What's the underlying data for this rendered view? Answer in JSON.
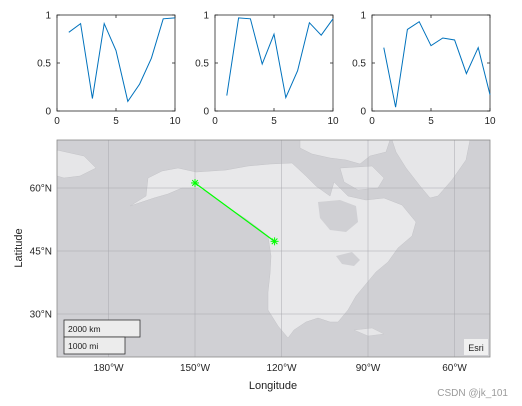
{
  "chart_data": [
    {
      "type": "line",
      "x": [
        1,
        2,
        3,
        4,
        5,
        6,
        7,
        8,
        9,
        10
      ],
      "series": [
        {
          "values": [
            0.82,
            0.91,
            0.13,
            0.91,
            0.63,
            0.1,
            0.28,
            0.55,
            0.96,
            0.97
          ]
        }
      ],
      "xlim": [
        0,
        10
      ],
      "ylim": [
        0,
        1
      ],
      "xticks": [
        "0",
        "5",
        "10"
      ],
      "yticks": [
        "0",
        "0.5",
        "1"
      ]
    },
    {
      "type": "line",
      "x": [
        1,
        2,
        3,
        4,
        5,
        6,
        7,
        8,
        9,
        10
      ],
      "series": [
        {
          "values": [
            0.16,
            0.97,
            0.96,
            0.49,
            0.8,
            0.14,
            0.42,
            0.92,
            0.79,
            0.96
          ]
        }
      ],
      "xlim": [
        0,
        10
      ],
      "ylim": [
        0,
        1
      ],
      "xticks": [
        "0",
        "5",
        "10"
      ],
      "yticks": [
        "0",
        "0.5",
        "1"
      ]
    },
    {
      "type": "line",
      "x": [
        1,
        2,
        3,
        4,
        5,
        6,
        7,
        8,
        9,
        10
      ],
      "series": [
        {
          "values": [
            0.66,
            0.04,
            0.85,
            0.93,
            0.68,
            0.76,
            0.74,
            0.39,
            0.66,
            0.17
          ]
        }
      ],
      "xlim": [
        0,
        10
      ],
      "ylim": [
        0,
        1
      ],
      "xticks": [
        "0",
        "5",
        "10"
      ],
      "yticks": [
        "0",
        "0.5",
        "1"
      ]
    },
    {
      "type": "map",
      "xlabel": "Longitude",
      "ylabel": "Latitude",
      "xticks": [
        "180°W",
        "150°W",
        "120°W",
        "90°W",
        "60°W"
      ],
      "yticks": [
        "30°N",
        "45°N",
        "60°N"
      ],
      "route": [
        {
          "lon": -150,
          "lat": 61.2
        },
        {
          "lon": -122.4,
          "lat": 47.3
        }
      ],
      "route_color": "#00ff00",
      "scalebar": {
        "km_label": "2000 km",
        "mi_label": "1000 mi"
      },
      "attribution": "Esri"
    }
  ],
  "colors": {
    "line": "#0072bd",
    "ocean": "#d0d0d4",
    "land": "#e8e8e8"
  },
  "watermark": "CSDN @jk_101"
}
